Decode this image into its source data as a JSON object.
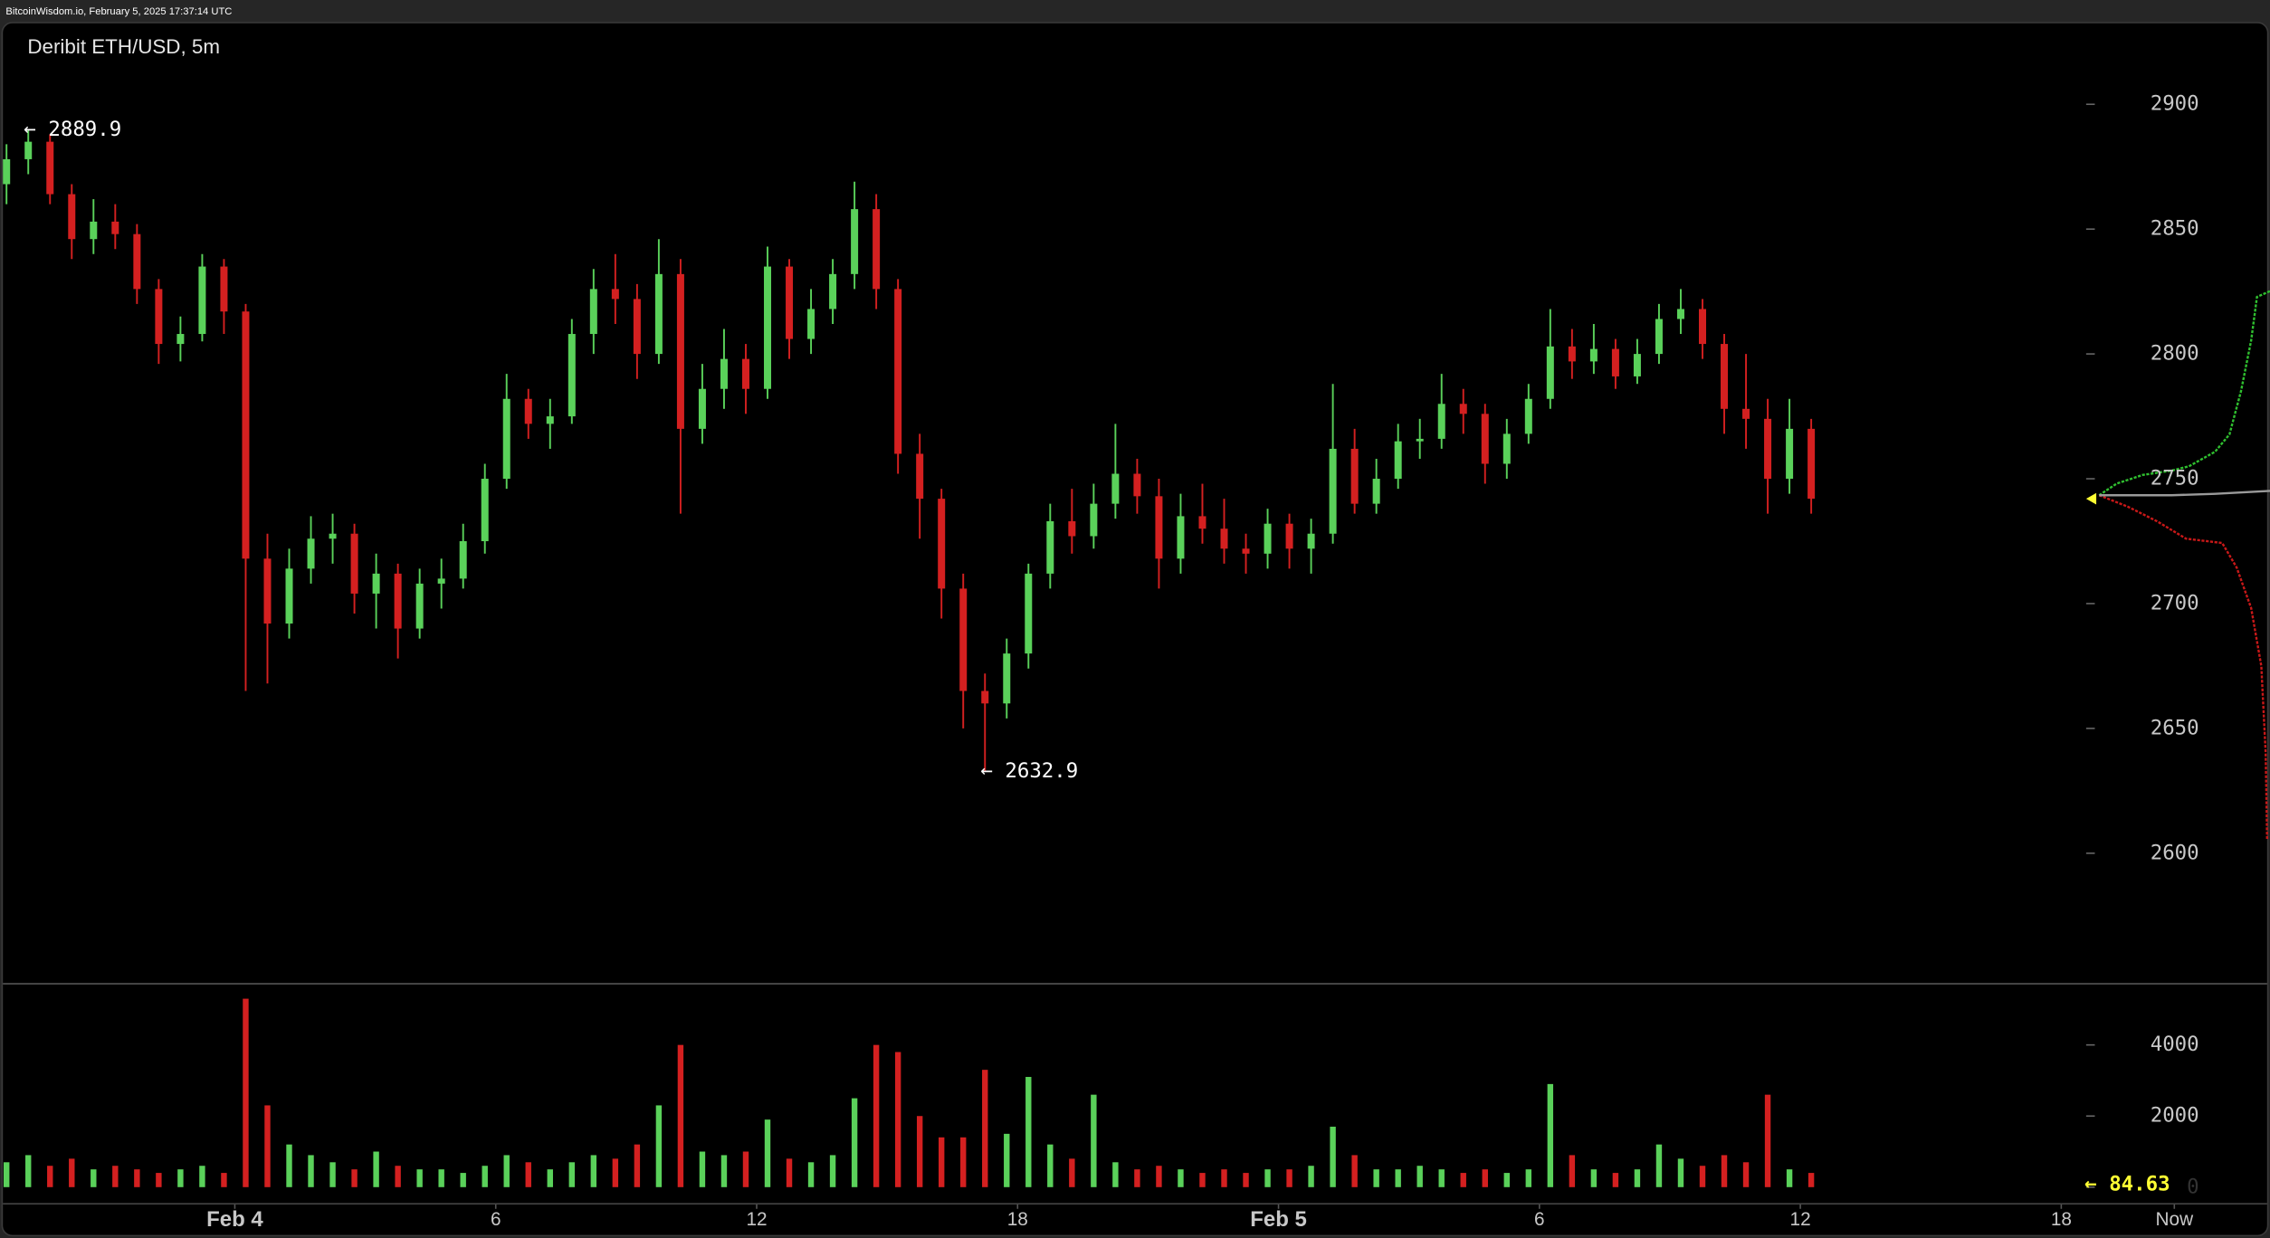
{
  "header": {
    "source": "BitcoinWisdom.io, February 5, 2025 17:37:14 UTC"
  },
  "chart_data": {
    "type": "candlestick",
    "title": "Deribit ETH/USD, 5m",
    "x": [
      -5.25,
      -4.75,
      -4.25,
      -3.75,
      -3.25,
      -2.75,
      -2.25,
      -1.75,
      -1.25,
      -0.75,
      -0.25,
      0.25,
      0.75,
      1.25,
      1.75,
      2.25,
      2.75,
      3.25,
      3.75,
      4.25,
      4.75,
      5.25,
      5.75,
      6.25,
      6.75,
      7.25,
      7.75,
      8.25,
      8.75,
      9.25,
      9.75,
      10.25,
      10.75,
      11.25,
      11.75,
      12.25,
      12.75,
      13.25,
      13.75,
      14.25,
      14.75,
      15.25,
      15.75,
      16.25,
      16.75,
      17.25,
      17.75,
      18.25,
      18.75,
      19.25,
      19.75,
      20.25,
      20.75,
      21.25,
      21.75,
      22.25,
      22.75,
      23.25,
      23.75,
      24.25,
      24.75,
      25.25,
      25.75,
      26.25,
      26.75,
      27.25,
      27.75,
      28.25,
      28.75,
      29.25,
      29.75,
      30.25,
      30.75,
      31.25,
      31.75,
      32.25,
      32.75,
      33.25,
      33.75,
      34.25,
      34.75,
      35.25,
      35.75,
      36.25
    ],
    "open": [
      2868,
      2878,
      2885,
      2864,
      2846,
      2853,
      2848,
      2826,
      2804,
      2808,
      2835,
      2817,
      2718,
      2692,
      2714,
      2726,
      2728,
      2704,
      2712,
      2690,
      2708,
      2710,
      2725,
      2750,
      2782,
      2772,
      2775,
      2808,
      2826,
      2822,
      2800,
      2832,
      2770,
      2786,
      2798,
      2786,
      2835,
      2806,
      2818,
      2832,
      2858,
      2826,
      2760,
      2742,
      2706,
      2665,
      2660,
      2680,
      2712,
      2733,
      2727,
      2740,
      2752,
      2743,
      2718,
      2735,
      2730,
      2722,
      2720,
      2732,
      2722,
      2728,
      2762,
      2740,
      2750,
      2765,
      2766,
      2780,
      2776,
      2756,
      2768,
      2782,
      2803,
      2797,
      2802,
      2791,
      2800,
      2814,
      2818,
      2804,
      2778,
      2774,
      2750,
      2770
    ],
    "high": [
      2884,
      2889.9,
      2888,
      2868,
      2862,
      2860,
      2852,
      2830,
      2815,
      2840,
      2838,
      2820,
      2728,
      2722,
      2735,
      2736,
      2732,
      2720,
      2716,
      2714,
      2718,
      2732,
      2756,
      2792,
      2786,
      2782,
      2814,
      2834,
      2840,
      2828,
      2846,
      2838,
      2796,
      2810,
      2804,
      2843,
      2838,
      2826,
      2838,
      2869,
      2864,
      2830,
      2768,
      2746,
      2712,
      2672,
      2686,
      2716,
      2740,
      2746,
      2748,
      2772,
      2758,
      2750,
      2744,
      2748,
      2742,
      2728,
      2738,
      2736,
      2734,
      2788,
      2770,
      2758,
      2772,
      2774,
      2792,
      2786,
      2780,
      2774,
      2788,
      2818,
      2810,
      2812,
      2806,
      2806,
      2820,
      2826,
      2822,
      2808,
      2800,
      2782,
      2782,
      2774
    ],
    "low": [
      2860,
      2872,
      2860,
      2838,
      2840,
      2842,
      2820,
      2796,
      2797,
      2805,
      2808,
      2665,
      2668,
      2686,
      2708,
      2716,
      2696,
      2690,
      2678,
      2686,
      2698,
      2706,
      2720,
      2746,
      2766,
      2762,
      2772,
      2800,
      2812,
      2790,
      2796,
      2736,
      2764,
      2778,
      2776,
      2782,
      2798,
      2800,
      2812,
      2826,
      2818,
      2752,
      2726,
      2694,
      2650,
      2632.9,
      2654,
      2674,
      2706,
      2720,
      2722,
      2734,
      2736,
      2706,
      2712,
      2724,
      2716,
      2712,
      2714,
      2714,
      2712,
      2724,
      2736,
      2736,
      2746,
      2758,
      2762,
      2768,
      2748,
      2750,
      2764,
      2778,
      2790,
      2792,
      2786,
      2788,
      2796,
      2808,
      2798,
      2768,
      2762,
      2736,
      2744,
      2736
    ],
    "close": [
      2878,
      2885,
      2864,
      2846,
      2853,
      2848,
      2826,
      2804,
      2808,
      2835,
      2817,
      2718,
      2692,
      2714,
      2726,
      2728,
      2704,
      2712,
      2690,
      2708,
      2710,
      2725,
      2750,
      2782,
      2772,
      2775,
      2808,
      2826,
      2822,
      2800,
      2832,
      2770,
      2786,
      2798,
      2786,
      2835,
      2806,
      2818,
      2832,
      2858,
      2826,
      2760,
      2742,
      2706,
      2665,
      2660,
      2680,
      2712,
      2733,
      2727,
      2740,
      2752,
      2743,
      2718,
      2735,
      2730,
      2722,
      2720,
      2732,
      2722,
      2728,
      2762,
      2740,
      2750,
      2765,
      2766,
      2780,
      2776,
      2756,
      2768,
      2782,
      2803,
      2797,
      2802,
      2791,
      2800,
      2814,
      2818,
      2804,
      2778,
      2774,
      2750,
      2770,
      2742
    ],
    "volume": [
      700,
      900,
      600,
      800,
      500,
      600,
      500,
      400,
      500,
      600,
      400,
      5300,
      2300,
      1200,
      900,
      700,
      500,
      1000,
      600,
      500,
      500,
      400,
      600,
      900,
      700,
      500,
      700,
      900,
      800,
      1200,
      2300,
      4000,
      1000,
      900,
      1000,
      1900,
      800,
      700,
      900,
      2500,
      4000,
      3800,
      2000,
      1400,
      1400,
      3300,
      1500,
      3100,
      1200,
      800,
      2600,
      700,
      500,
      600,
      500,
      400,
      500,
      400,
      500,
      500,
      600,
      1700,
      900,
      500,
      500,
      600,
      500,
      400,
      500,
      400,
      500,
      2900,
      900,
      500,
      400,
      500,
      1200,
      800,
      600,
      900,
      700,
      2600,
      500,
      400
    ],
    "up_color": "#5ad15a",
    "down_color": "#d42020",
    "xlim": [
      -5.4,
      46.8
    ],
    "xticks": [
      {
        "value": 0,
        "label": "Feb 4"
      },
      6,
      12,
      18,
      {
        "value": 24,
        "label": "Feb 5"
      },
      {
        "value": 30,
        "label": "6"
      },
      {
        "value": 36,
        "label": "12"
      },
      {
        "value": 42,
        "label": "18"
      },
      {
        "value": 44.6,
        "label": "Now"
      }
    ],
    "ylim": [
      2548,
      2933
    ],
    "yticks": [
      2600,
      2650,
      2700,
      2750,
      2800,
      2850,
      2900
    ],
    "volume_ylim": [
      0,
      5700
    ],
    "volume_yticks": [
      0,
      2000,
      4000
    ],
    "last_volume": 84.63,
    "last_volume_color": "#ffff33"
  }
}
